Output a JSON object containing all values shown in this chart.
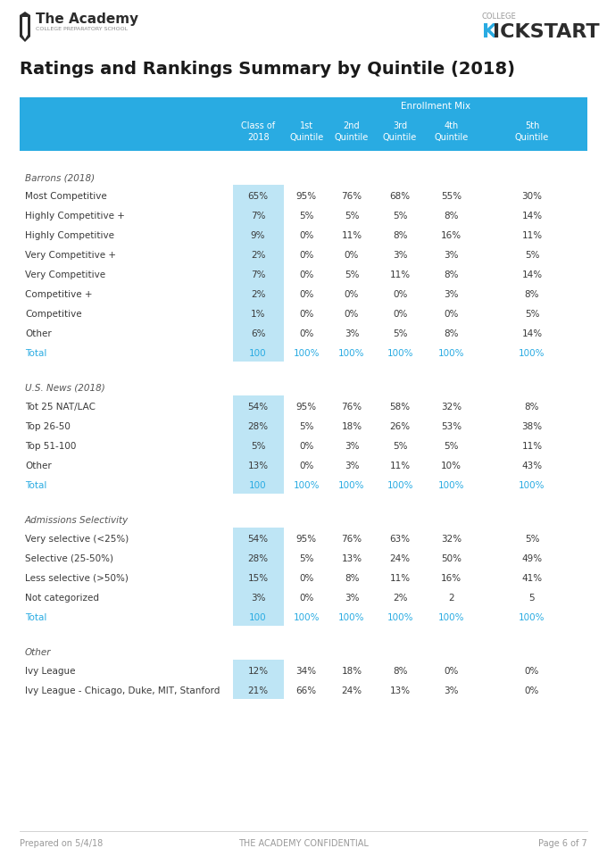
{
  "title": "Ratings and Rankings Summary by Quintile (2018)",
  "header_bg": "#29ABE2",
  "col2_bg": "#BEE5F5",
  "header_text_color": "#FFFFFF",
  "body_text_color": "#3a3a3a",
  "total_text_color": "#29ABE2",
  "section_header_color": "#555555",
  "footer_text_color": "#999999",
  "header_row2": [
    "",
    "Class of\n2018",
    "1st\nQuintile",
    "2nd\nQuintile",
    "3rd\nQuintile",
    "4th\nQuintile",
    "5th\nQuintile"
  ],
  "sections": [
    {
      "section_header": "Barrons (2018)",
      "rows": [
        [
          "Most Competitive",
          "65%",
          "95%",
          "76%",
          "68%",
          "55%",
          "30%"
        ],
        [
          "Highly Competitive +",
          "7%",
          "5%",
          "5%",
          "5%",
          "8%",
          "14%"
        ],
        [
          "Highly Competitive",
          "9%",
          "0%",
          "11%",
          "8%",
          "16%",
          "11%"
        ],
        [
          "Very Competitive +",
          "2%",
          "0%",
          "0%",
          "3%",
          "3%",
          "5%"
        ],
        [
          "Very Competitive",
          "7%",
          "0%",
          "5%",
          "11%",
          "8%",
          "14%"
        ],
        [
          "Competitive +",
          "2%",
          "0%",
          "0%",
          "0%",
          "3%",
          "8%"
        ],
        [
          "Competitive",
          "1%",
          "0%",
          "0%",
          "0%",
          "0%",
          "5%"
        ],
        [
          "Other",
          "6%",
          "0%",
          "3%",
          "5%",
          "8%",
          "14%"
        ],
        [
          "Total",
          "100",
          "100%",
          "100%",
          "100%",
          "100%",
          "100%"
        ]
      ],
      "total_row": 8
    },
    {
      "section_header": "U.S. News (2018)",
      "rows": [
        [
          "Tot 25 NAT/LAC",
          "54%",
          "95%",
          "76%",
          "58%",
          "32%",
          "8%"
        ],
        [
          "Top 26-50",
          "28%",
          "5%",
          "18%",
          "26%",
          "53%",
          "38%"
        ],
        [
          "Top 51-100",
          "5%",
          "0%",
          "3%",
          "5%",
          "5%",
          "11%"
        ],
        [
          "Other",
          "13%",
          "0%",
          "3%",
          "11%",
          "10%",
          "43%"
        ],
        [
          "Total",
          "100",
          "100%",
          "100%",
          "100%",
          "100%",
          "100%"
        ]
      ],
      "total_row": 4
    },
    {
      "section_header": "Admissions Selectivity",
      "rows": [
        [
          "Very selective (<25%)",
          "54%",
          "95%",
          "76%",
          "63%",
          "32%",
          "5%"
        ],
        [
          "Selective (25-50%)",
          "28%",
          "5%",
          "13%",
          "24%",
          "50%",
          "49%"
        ],
        [
          "Less selective (>50%)",
          "15%",
          "0%",
          "8%",
          "11%",
          "16%",
          "41%"
        ],
        [
          "Not categorized",
          "3%",
          "0%",
          "3%",
          "2%",
          "2",
          "5"
        ],
        [
          "Total",
          "100",
          "100%",
          "100%",
          "100%",
          "100%",
          "100%"
        ]
      ],
      "total_row": 4
    },
    {
      "section_header": "Other",
      "rows": [
        [
          "Ivy League",
          "12%",
          "34%",
          "18%",
          "8%",
          "0%",
          "0%"
        ],
        [
          "Ivy League - Chicago, Duke, MIT, Stanford",
          "21%",
          "66%",
          "24%",
          "13%",
          "3%",
          "0%"
        ]
      ],
      "total_row": -1
    }
  ],
  "footer_left": "Prepared on 5/4/18",
  "footer_center": "THE ACADEMY CONFIDENTIAL",
  "footer_right": "Page 6 of 7"
}
